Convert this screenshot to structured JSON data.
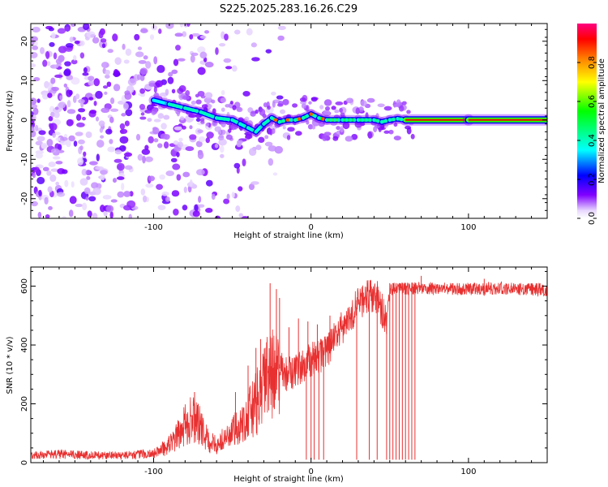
{
  "title": "S225.2025.283.16.26.C29",
  "chart_data": [
    {
      "type": "heatmap",
      "panel": "spectrogram",
      "xlabel": "Height of straight line (km)",
      "ylabel": "Frequency (Hz)",
      "xlim": [
        -178,
        150
      ],
      "ylim": [
        -25,
        24.5
      ],
      "xticks": [
        -100,
        0,
        100
      ],
      "xtick_labels": [
        "-100",
        "0",
        "100"
      ],
      "yticks": [
        -20,
        -10,
        0,
        10,
        20
      ],
      "ytick_labels": [
        "-20",
        "-10",
        "0",
        "10",
        "20"
      ],
      "colorbar": {
        "label": "Normalized spectral amplitude",
        "range": [
          0,
          1
        ],
        "ticks": [
          0.0,
          0.2,
          0.4,
          0.6,
          0.8
        ],
        "tick_labels": [
          "0.0",
          "0.2",
          "0.4",
          "0.6",
          "0.8"
        ],
        "colors": [
          "#ffffff",
          "#e8d8ff",
          "#8000ff",
          "#0000ff",
          "#00ffff",
          "#00ff00",
          "#ffff00",
          "#ff8000",
          "#ff0000",
          "#ff0080"
        ]
      },
      "carrier_track": {
        "x": [
          -100,
          -90,
          -80,
          -70,
          -60,
          -50,
          -45,
          -40,
          -35,
          -30,
          -25,
          -20,
          -15,
          -10,
          -5,
          0,
          5,
          10,
          20,
          30,
          40,
          45,
          50,
          55,
          60,
          100,
          150
        ],
        "y": [
          5,
          4,
          3,
          2,
          0.5,
          0,
          -1,
          -2,
          -3,
          -1,
          0.5,
          -0.5,
          0,
          0,
          0.5,
          1.5,
          0.5,
          0,
          0,
          0,
          0,
          -0.5,
          0,
          0.3,
          0,
          0,
          0
        ],
        "amplitude": [
          0.35,
          0.4,
          0.4,
          0.4,
          0.4,
          0.4,
          0.35,
          0.35,
          0.35,
          0.4,
          0.45,
          0.55,
          0.6,
          0.6,
          0.5,
          0.45,
          0.55,
          0.7,
          0.55,
          0.5,
          0.5,
          0.45,
          0.5,
          0.5,
          0.9,
          0.9,
          0.9
        ]
      }
    },
    {
      "type": "line",
      "panel": "snr",
      "xlabel": "Height of straight line (km)",
      "ylabel": "SNR (10 * v/v)",
      "xlim": [
        -178,
        150
      ],
      "ylim": [
        0,
        665
      ],
      "xticks": [
        -100,
        0,
        100
      ],
      "xtick_labels": [
        "-100",
        "0",
        "100"
      ],
      "yticks": [
        0,
        200,
        400,
        600
      ],
      "ytick_labels": [
        "0",
        "200",
        "400",
        "600"
      ],
      "series": [
        {
          "name": "SNR",
          "color": "#e83030",
          "x": [
            -178,
            -160,
            -140,
            -120,
            -110,
            -100,
            -95,
            -90,
            -85,
            -80,
            -75,
            -70,
            -65,
            -60,
            -55,
            -50,
            -45,
            -40,
            -35,
            -30,
            -25,
            -20,
            -15,
            -10,
            -5,
            0,
            5,
            10,
            15,
            20,
            25,
            30,
            35,
            40,
            42,
            45,
            48,
            50,
            55,
            60,
            70,
            80,
            100,
            120,
            140,
            150
          ],
          "y": [
            25,
            28,
            25,
            25,
            28,
            30,
            45,
            60,
            90,
            130,
            150,
            120,
            70,
            60,
            80,
            100,
            130,
            160,
            200,
            260,
            300,
            320,
            300,
            310,
            330,
            350,
            360,
            380,
            420,
            460,
            500,
            540,
            565,
            570,
            560,
            520,
            480,
            590,
            590,
            590,
            595,
            590,
            590,
            592,
            590,
            588
          ],
          "spikes": [
            {
              "x": -74,
              "y": 240
            },
            {
              "x": -48,
              "y": 240
            },
            {
              "x": -40,
              "y": 330
            },
            {
              "x": -35,
              "y": 390
            },
            {
              "x": -32,
              "y": 420
            },
            {
              "x": -30,
              "y": 360
            },
            {
              "x": -26,
              "y": 610
            },
            {
              "x": -22,
              "y": 590
            },
            {
              "x": -20,
              "y": 560
            },
            {
              "x": -14,
              "y": 460
            },
            {
              "x": -8,
              "y": 490
            },
            {
              "x": -2,
              "y": 480
            },
            {
              "x": 4,
              "y": 470
            },
            {
              "x": 12,
              "y": 500
            },
            {
              "x": 70,
              "y": 635
            },
            {
              "x": 110,
              "y": 625
            }
          ],
          "dropouts": [
            -3,
            0,
            2,
            5,
            8,
            29,
            37,
            42,
            48,
            50,
            52,
            54,
            56,
            58,
            60,
            62,
            64,
            66
          ]
        }
      ]
    }
  ]
}
